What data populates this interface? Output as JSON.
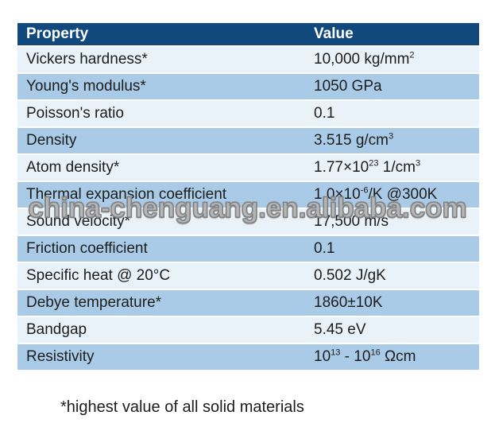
{
  "table": {
    "headers": {
      "property": "Property",
      "value": "Value"
    },
    "rows": [
      {
        "property": "Vickers hardness*",
        "value": "10,000 kg/mm^{2}"
      },
      {
        "property": "Young's modulus*",
        "value": "1050 GPa"
      },
      {
        "property": "Poisson's ratio",
        "value": "0.1"
      },
      {
        "property": "Density",
        "value": "3.515 g/cm^{3}"
      },
      {
        "property": "Atom density*",
        "value": "1.77×10^{23} 1/cm^{3}"
      },
      {
        "property": "Thermal expansion coefficient",
        "value": "1.0×10^{-6}/K @300K"
      },
      {
        "property": "Sound velocity*",
        "value": "17,500 m/s"
      },
      {
        "property": "Friction coefficient",
        "value": "0.1"
      },
      {
        "property": "Specific heat @ 20°C",
        "value": "0.502 J/gK"
      },
      {
        "property": "Debye temperature*",
        "value": "1860±10K"
      },
      {
        "property": "Bandgap",
        "value": "5.45 eV"
      },
      {
        "property": "Resistivity",
        "value": "10^{13} - 10^{16} Ωcm"
      }
    ]
  },
  "footnote": "*highest value of all solid materials",
  "watermark": "china-chenguang.en.alibaba.com",
  "colors": {
    "header_bg": "#11497C",
    "header_text": "#FFFFFF",
    "row_light": "#E9F1F9",
    "row_medium": "#A9CBE8",
    "row_text": "#1D1D1B",
    "background": "#FFFFFF"
  }
}
